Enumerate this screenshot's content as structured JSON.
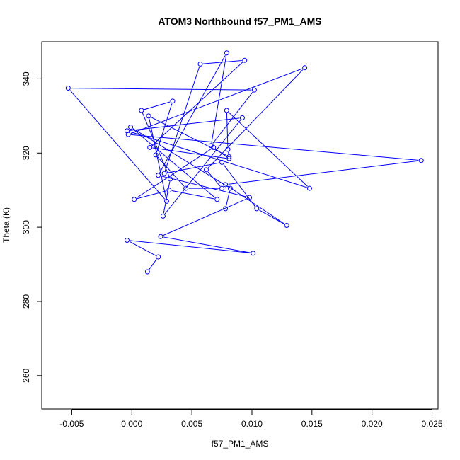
{
  "chart_data": {
    "type": "line",
    "title": "ATOM3 Northbound f57_PM1_AMS",
    "xlabel": "f57_PM1_AMS",
    "ylabel": "Theta (K)",
    "xlim": [
      -0.0075,
      0.0255
    ],
    "ylim": [
      251,
      350
    ],
    "xticks": [
      -0.005,
      0.0,
      0.005,
      0.01,
      0.015,
      0.02,
      0.025
    ],
    "xtick_labels": [
      "-0.005",
      "0.000",
      "0.005",
      "0.010",
      "0.015",
      "0.020",
      "0.025"
    ],
    "yticks": [
      260,
      280,
      300,
      320,
      340
    ],
    "ytick_labels": [
      "260",
      "280",
      "300",
      "320",
      "340"
    ],
    "grid": false,
    "line_color": "#0000ff",
    "marker": "open-circle",
    "series": [
      {
        "x": [
          0.0013,
          0.0022,
          -0.0004,
          0.0101,
          0.0024,
          0.0098,
          0.0022,
          0.0079,
          0.0066,
          0.0102,
          -0.0053,
          0.0029,
          0.0014,
          0.0081,
          0.008,
          0.0079,
          0.0148,
          -0.0004,
          0.0092,
          0.0026,
          0.0032,
          0.0008,
          0.0034,
          0.002,
          0.0045,
          0.0075,
          0.0062,
          0.0144,
          -0.0003,
          0.0241,
          0.0078,
          0.0129,
          0.0104,
          0.0075,
          0.0027,
          0.0057,
          0.0094,
          0.0015,
          0.0081,
          0.0068,
          0.0002,
          0.0031,
          0.0071,
          -0.0001,
          0.0082,
          0.0078
        ],
        "y": [
          288,
          292,
          296.5,
          293,
          297.5,
          308,
          314,
          347,
          322,
          337,
          337.5,
          307,
          330,
          319,
          321,
          331.5,
          310.5,
          326,
          329.5,
          303,
          313,
          331.5,
          334,
          319.5,
          310.5,
          310.5,
          315.5,
          343,
          325,
          318,
          311.5,
          300.5,
          305,
          317.5,
          314.5,
          344,
          345,
          321.5,
          318.5,
          321.5,
          307.5,
          310,
          307.5,
          327,
          310.5,
          305
        ]
      }
    ]
  }
}
